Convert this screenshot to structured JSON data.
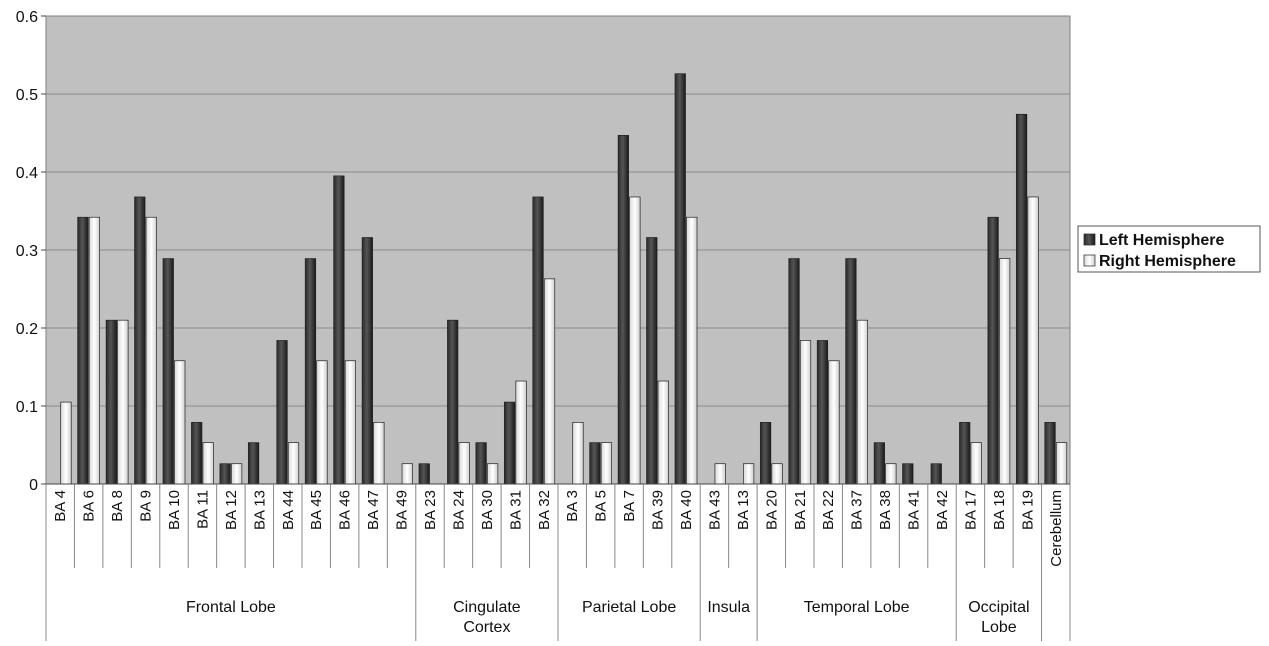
{
  "chart_data": {
    "type": "bar",
    "ylim": [
      0,
      0.6
    ],
    "y_ticks": [
      "0",
      "0.1",
      "0.2",
      "0.3",
      "0.4",
      "0.5",
      "0.6"
    ],
    "grid": true,
    "legend_position": "right",
    "categories": [
      "BA 4",
      "BA 6",
      "BA 8",
      "BA 9",
      "BA 10",
      "BA 11",
      "BA 12",
      "BA 13",
      "BA 44",
      "BA 45",
      "BA 46",
      "BA 47",
      "BA 49",
      "BA 23",
      "BA 24",
      "BA 30",
      "BA 31",
      "BA 32",
      "BA 3",
      "BA 5",
      "BA 7",
      "BA 39",
      "BA 40",
      "BA 43",
      "BA 13",
      "BA 20",
      "BA 21",
      "BA 22",
      "BA 37",
      "BA 38",
      "BA 41",
      "BA 42",
      "BA 17",
      "BA 18",
      "BA 19",
      "Cerebellum"
    ],
    "groups": [
      {
        "label": "Frontal Lobe",
        "count": 13
      },
      {
        "label": "Cingulate Cortex",
        "count": 5
      },
      {
        "label": "Parietal Lobe",
        "count": 5
      },
      {
        "label": "Insula",
        "count": 2
      },
      {
        "label": "Temporal Lobe",
        "count": 7
      },
      {
        "label": "Occipital Lobe",
        "count": 3
      },
      {
        "label": "",
        "count": 1
      }
    ],
    "series": [
      {
        "name": "Left Hemisphere",
        "color": "#3a3a3a",
        "values": [
          0,
          0.342,
          0.21,
          0.368,
          0.289,
          0.079,
          0.026,
          0.053,
          0.184,
          0.289,
          0.395,
          0.316,
          0,
          0.026,
          0.21,
          0.053,
          0.105,
          0.368,
          0,
          0.053,
          0.447,
          0.316,
          0.526,
          0,
          0,
          0.079,
          0.289,
          0.184,
          0.289,
          0.053,
          0.026,
          0.026,
          0.079,
          0.342,
          0.474,
          0.079
        ]
      },
      {
        "name": "Right Hemisphere",
        "color": "#f0f0f0",
        "values": [
          0.105,
          0.342,
          0.21,
          0.342,
          0.158,
          0.053,
          0.026,
          0,
          0.053,
          0.158,
          0.158,
          0.079,
          0.026,
          0,
          0.053,
          0.026,
          0.132,
          0.263,
          0.079,
          0.053,
          0.368,
          0.132,
          0.342,
          0.026,
          0.026,
          0.026,
          0.184,
          0.158,
          0.21,
          0.026,
          0,
          0,
          0.053,
          0.289,
          0.368,
          0.053
        ]
      }
    ]
  }
}
